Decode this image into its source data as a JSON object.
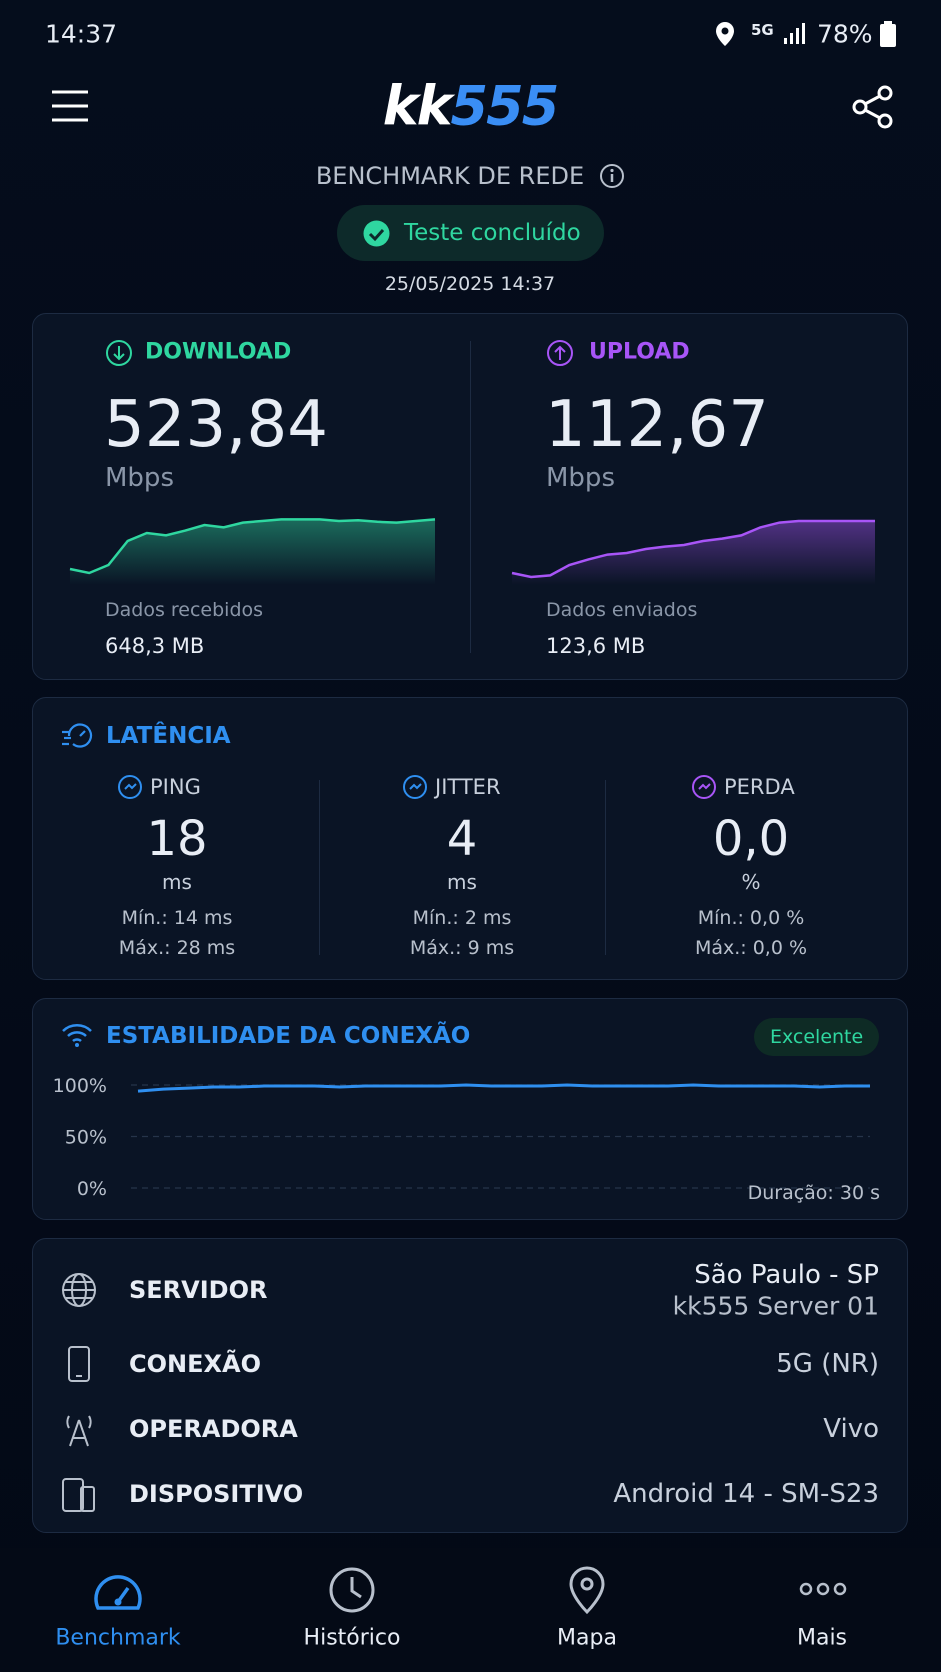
{
  "status_bar": {
    "time": "14:37",
    "network": "5G",
    "battery": "78%"
  },
  "header": {
    "logo_left": "kk",
    "logo_right": "555",
    "title": "BENCHMARK DE REDE",
    "status": "Teste concluído",
    "datetime": "25/05/2025 14:37"
  },
  "speed": {
    "download": {
      "label": "DOWNLOAD",
      "value": "523,84",
      "unit": "Mbps",
      "data_label": "Dados recebidos",
      "data_value": "648,3 MB",
      "chart": {
        "type": "area",
        "color": "#2fd7a0",
        "ylim": [
          0,
          100
        ],
        "values": [
          20,
          15,
          25,
          55,
          65,
          62,
          68,
          75,
          72,
          78,
          80,
          82,
          82,
          82,
          80,
          81,
          79,
          78,
          80,
          82
        ]
      }
    },
    "upload": {
      "label": "UPLOAD",
      "value": "112,67",
      "unit": "Mbps",
      "data_label": "Dados enviados",
      "data_value": "123,6 MB",
      "chart": {
        "type": "area",
        "color": "#a855f7",
        "ylim": [
          0,
          100
        ],
        "values": [
          15,
          10,
          12,
          25,
          32,
          38,
          40,
          45,
          48,
          50,
          55,
          58,
          62,
          72,
          78,
          80,
          80,
          80,
          80,
          80
        ]
      }
    }
  },
  "latency": {
    "title": "LATÊNCIA",
    "items": [
      {
        "label": "PING",
        "value": "18",
        "unit": "ms",
        "min": "Mín.: 14 ms",
        "max": "Máx.: 28 ms"
      },
      {
        "label": "JITTER",
        "value": "4",
        "unit": "ms",
        "min": "Mín.: 2 ms",
        "max": "Máx.: 9 ms"
      },
      {
        "label": "PERDA",
        "value": "0,0",
        "unit": "%",
        "min": "Mín.: 0,0 %",
        "max": "Máx.: 0,0 %"
      }
    ]
  },
  "stability": {
    "title": "ESTABILIDADE DA CONEXÃO",
    "badge": "Excelente",
    "duration": "Duração: 30 s",
    "chart": {
      "type": "line",
      "color": "#2f8ff0",
      "ylim": [
        0,
        100
      ],
      "yticks": [
        {
          "value": 0,
          "label": "0%"
        },
        {
          "value": 50,
          "label": "50%"
        },
        {
          "value": 100,
          "label": "100%"
        }
      ],
      "values": [
        94,
        96,
        97,
        98,
        98,
        99,
        99,
        99,
        98,
        99,
        99,
        99,
        99,
        100,
        99,
        99,
        99,
        100,
        99,
        99,
        99,
        99,
        100,
        99,
        99,
        99,
        99,
        98,
        99,
        99
      ]
    }
  },
  "info": {
    "rows": [
      {
        "label": "SERVIDOR",
        "value": "São Paulo - SP",
        "value2": "kk555 Server 01"
      },
      {
        "label": "CONEXÃO",
        "value": "5G (NR)"
      },
      {
        "label": "OPERADORA",
        "value": "Vivo"
      },
      {
        "label": "DISPOSITIVO",
        "value": "Android 14 - SM-S23"
      }
    ]
  },
  "nav": {
    "items": [
      "Benchmark",
      "Histórico",
      "Mapa",
      "Mais"
    ]
  }
}
